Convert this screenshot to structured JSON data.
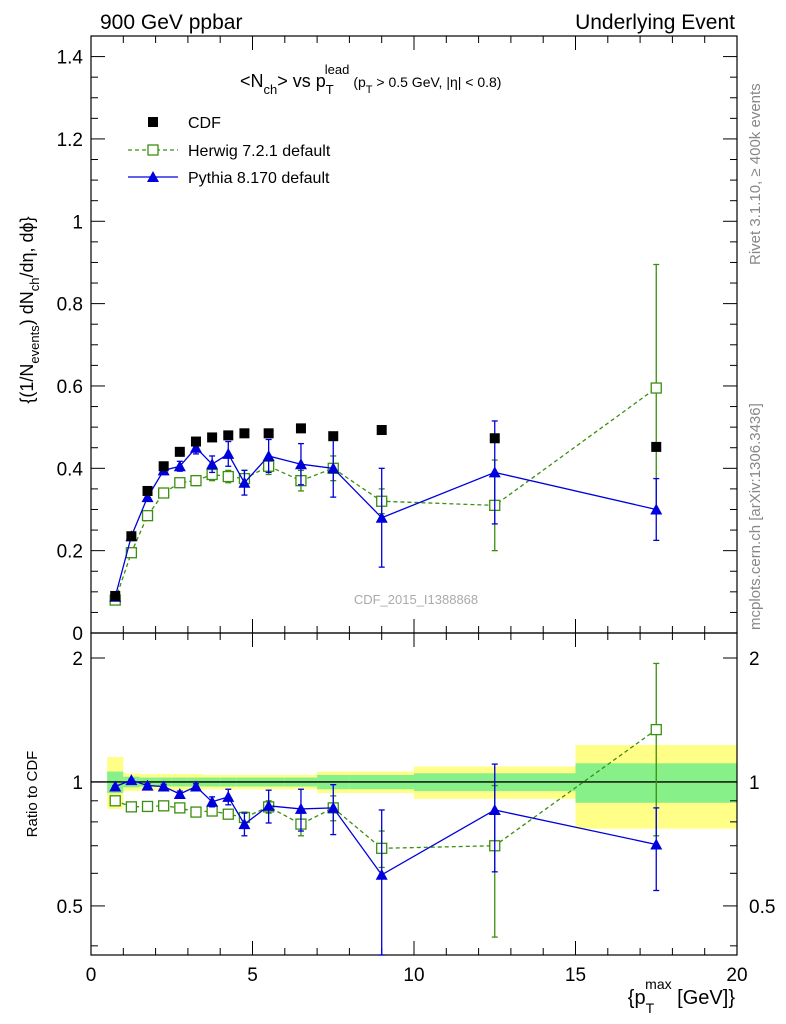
{
  "header": {
    "left_label": "900 GeV ppbar",
    "right_label": "Underlying Event"
  },
  "side_labels": {
    "rivet": "Rivet 3.1.10, ≥ 400k events",
    "mcplots": "mcplots.cern.ch [arXiv:1306.3436]"
  },
  "chart_data": [
    {
      "type": "scatter",
      "panel": "main",
      "title_parts": {
        "open": "<N",
        "ch_sub": "ch",
        "mid": "> vs p",
        "t_sub": "T",
        "lead_sup": "lead",
        "cut_open": "(p",
        "cut_t_sub": "T",
        "cut_rest": " > 0.5 GeV, |η| < 0.8)"
      },
      "ylabel_parts": {
        "a": "{(1/N",
        "events_sub": "events",
        "b": ") dN",
        "ch_sub": "ch",
        "c": "/dη, dϕ}"
      },
      "watermark": "CDF_2015_I1388868",
      "xlim": [
        0,
        20
      ],
      "ylim": [
        0,
        1.45
      ],
      "yticks": [
        0,
        0.2,
        0.4,
        0.6,
        0.8,
        1,
        1.2,
        1.4
      ],
      "ytick_labels": [
        "0",
        "0.2",
        "0.4",
        "0.6",
        "0.8",
        "1",
        "1.2",
        "1.4"
      ],
      "series": [
        {
          "name": "CDF",
          "color": "#000000",
          "marker": "filled-square",
          "x": [
            0.75,
            1.25,
            1.75,
            2.25,
            2.75,
            3.25,
            3.75,
            4.25,
            4.75,
            5.5,
            6.5,
            7.5,
            9.0,
            12.5,
            17.5
          ],
          "y": [
            0.09,
            0.235,
            0.345,
            0.405,
            0.44,
            0.465,
            0.475,
            0.48,
            0.485,
            0.485,
            0.497,
            0.478,
            0.493,
            0.473,
            0.452
          ]
        },
        {
          "name": "Herwig 7.2.1 default",
          "color": "#3a8f0e",
          "marker": "open-square",
          "line": "dashed",
          "x": [
            0.75,
            1.25,
            1.75,
            2.25,
            2.75,
            3.25,
            3.75,
            4.25,
            4.75,
            5.5,
            6.5,
            7.5,
            9.0,
            12.5,
            17.5
          ],
          "y": [
            0.08,
            0.195,
            0.285,
            0.34,
            0.365,
            0.37,
            0.385,
            0.38,
            0.375,
            0.405,
            0.37,
            0.4,
            0.32,
            0.31,
            0.595
          ],
          "err": [
            0.005,
            0.005,
            0.008,
            0.01,
            0.01,
            0.012,
            0.015,
            0.015,
            0.02,
            0.02,
            0.025,
            0.03,
            0.03,
            0.11,
            0.3
          ]
        },
        {
          "name": "Pythia 8.170 default",
          "color": "#0000dd",
          "marker": "filled-triangle",
          "line": "solid",
          "x": [
            0.75,
            1.25,
            1.75,
            2.25,
            2.75,
            3.25,
            3.75,
            4.25,
            4.75,
            5.5,
            6.5,
            7.5,
            9.0,
            12.5,
            17.5
          ],
          "y": [
            0.088,
            0.235,
            0.33,
            0.395,
            0.405,
            0.45,
            0.41,
            0.435,
            0.365,
            0.43,
            0.41,
            0.4,
            0.28,
            0.39,
            0.3
          ],
          "err": [
            0.005,
            0.006,
            0.01,
            0.01,
            0.012,
            0.015,
            0.02,
            0.03,
            0.03,
            0.04,
            0.05,
            0.07,
            0.12,
            0.125,
            0.075
          ]
        }
      ]
    },
    {
      "type": "scatter",
      "panel": "ratio",
      "ylabel": "Ratio to CDF",
      "xlabel_parts": {
        "open": "{p",
        "t_sub": "T",
        "max_sup": "max",
        "rest": " [GeV]}"
      },
      "xlim": [
        0,
        20
      ],
      "ylim": [
        0.38,
        2.3
      ],
      "yscale": "log",
      "xticks": [
        0,
        5,
        10,
        15,
        20
      ],
      "xtick_labels": [
        "0",
        "5",
        "10",
        "15",
        "20"
      ],
      "yticks": [
        0.5,
        1,
        2
      ],
      "ytick_labels": [
        "0.5",
        "1",
        "2"
      ],
      "bands": [
        {
          "x0": 0.5,
          "x1": 1.0,
          "inner": [
            0.94,
            1.06
          ],
          "outer": [
            0.86,
            1.15
          ]
        },
        {
          "x0": 1.0,
          "x1": 1.5,
          "inner": [
            0.97,
            1.03
          ],
          "outer": [
            0.95,
            1.05
          ]
        },
        {
          "x0": 1.5,
          "x1": 2.0,
          "inner": [
            0.975,
            1.025
          ],
          "outer": [
            0.955,
            1.045
          ]
        },
        {
          "x0": 2.0,
          "x1": 2.5,
          "inner": [
            0.975,
            1.025
          ],
          "outer": [
            0.955,
            1.045
          ]
        },
        {
          "x0": 2.5,
          "x1": 3.0,
          "inner": [
            0.975,
            1.025
          ],
          "outer": [
            0.955,
            1.045
          ]
        },
        {
          "x0": 3.0,
          "x1": 3.5,
          "inner": [
            0.975,
            1.025
          ],
          "outer": [
            0.955,
            1.045
          ]
        },
        {
          "x0": 3.5,
          "x1": 4.0,
          "inner": [
            0.975,
            1.025
          ],
          "outer": [
            0.96,
            1.04
          ]
        },
        {
          "x0": 4.0,
          "x1": 4.5,
          "inner": [
            0.975,
            1.025
          ],
          "outer": [
            0.96,
            1.04
          ]
        },
        {
          "x0": 4.5,
          "x1": 5.0,
          "inner": [
            0.975,
            1.025
          ],
          "outer": [
            0.96,
            1.04
          ]
        },
        {
          "x0": 5.0,
          "x1": 6.0,
          "inner": [
            0.975,
            1.025
          ],
          "outer": [
            0.96,
            1.04
          ]
        },
        {
          "x0": 6.0,
          "x1": 7.0,
          "inner": [
            0.975,
            1.025
          ],
          "outer": [
            0.96,
            1.04
          ]
        },
        {
          "x0": 7.0,
          "x1": 8.0,
          "inner": [
            0.96,
            1.04
          ],
          "outer": [
            0.94,
            1.06
          ]
        },
        {
          "x0": 8.0,
          "x1": 10.0,
          "inner": [
            0.96,
            1.04
          ],
          "outer": [
            0.94,
            1.06
          ]
        },
        {
          "x0": 10.0,
          "x1": 15.0,
          "inner": [
            0.95,
            1.05
          ],
          "outer": [
            0.91,
            1.09
          ]
        },
        {
          "x0": 15.0,
          "x1": 20.0,
          "inner": [
            0.89,
            1.11
          ],
          "outer": [
            0.77,
            1.23
          ]
        }
      ],
      "series": [
        {
          "name": "Herwig 7.2.1 default",
          "color": "#3a8f0e",
          "marker": "open-square",
          "line": "dashed",
          "x": [
            0.75,
            1.25,
            1.75,
            2.25,
            2.75,
            3.25,
            3.75,
            4.25,
            4.75,
            5.5,
            6.5,
            7.5,
            9.0,
            12.5,
            17.5
          ],
          "y": [
            0.9,
            0.87,
            0.872,
            0.875,
            0.865,
            0.845,
            0.85,
            0.835,
            0.82,
            0.87,
            0.79,
            0.865,
            0.69,
            0.7,
            1.34
          ],
          "err": [
            0.005,
            0.006,
            0.008,
            0.01,
            0.01,
            0.012,
            0.015,
            0.02,
            0.025,
            0.03,
            0.05,
            0.06,
            0.07,
            0.28,
            0.6
          ]
        },
        {
          "name": "Pythia 8.170 default",
          "color": "#0000dd",
          "marker": "filled-triangle",
          "line": "solid",
          "x": [
            0.75,
            1.25,
            1.75,
            2.25,
            2.75,
            3.25,
            3.75,
            4.25,
            4.75,
            5.5,
            6.5,
            7.5,
            9.0,
            12.5,
            17.5
          ],
          "y": [
            0.975,
            1.01,
            0.98,
            0.975,
            0.935,
            0.975,
            0.895,
            0.92,
            0.79,
            0.875,
            0.86,
            0.865,
            0.595,
            0.855,
            0.705
          ],
          "err": [
            0.005,
            0.006,
            0.01,
            0.012,
            0.015,
            0.015,
            0.025,
            0.04,
            0.05,
            0.08,
            0.1,
            0.12,
            0.26,
            0.25,
            0.16
          ]
        }
      ]
    }
  ]
}
